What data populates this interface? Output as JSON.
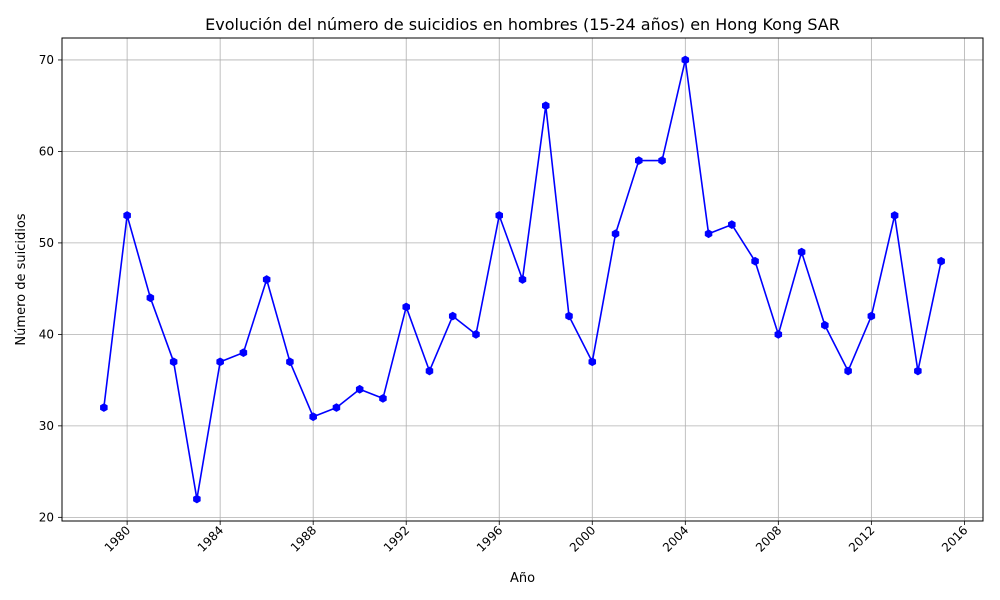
{
  "chart_data": {
    "type": "line",
    "title": "Evolución del número de suicidios en hombres (15-24 años) en Hong Kong SAR",
    "xlabel": "Año",
    "ylabel": "Número de suicidios",
    "x": [
      1979,
      1980,
      1981,
      1982,
      1983,
      1984,
      1985,
      1986,
      1987,
      1988,
      1989,
      1990,
      1991,
      1992,
      1993,
      1994,
      1995,
      1996,
      1997,
      1998,
      1999,
      2000,
      2001,
      2002,
      2003,
      2004,
      2005,
      2006,
      2007,
      2008,
      2009,
      2010,
      2011,
      2012,
      2013,
      2014,
      2015
    ],
    "series": [
      {
        "values": [
          32,
          53,
          44,
          37,
          22,
          37,
          38,
          46,
          37,
          31,
          32,
          34,
          33,
          43,
          36,
          42,
          40,
          53,
          46,
          65,
          42,
          37,
          51,
          59,
          59,
          70,
          51,
          52,
          48,
          40,
          49,
          41,
          36,
          42,
          53,
          36,
          48
        ],
        "color": "#0000ff",
        "marker": "hexagon"
      }
    ],
    "xlim": [
      1977.2,
      2016.8
    ],
    "ylim": [
      19.6,
      72.4
    ],
    "xticks": [
      1980,
      1984,
      1988,
      1992,
      1996,
      2000,
      2004,
      2008,
      2012,
      2016
    ],
    "xtick_labels": [
      "1980",
      "1984",
      "1988",
      "1992",
      "1996",
      "2000",
      "2004",
      "2008",
      "2012",
      "2016"
    ],
    "yticks": [
      20,
      30,
      40,
      50,
      60,
      70
    ],
    "ytick_labels": [
      "20",
      "30",
      "40",
      "50",
      "60",
      "70"
    ],
    "grid": true,
    "xtick_rotation": 45
  }
}
